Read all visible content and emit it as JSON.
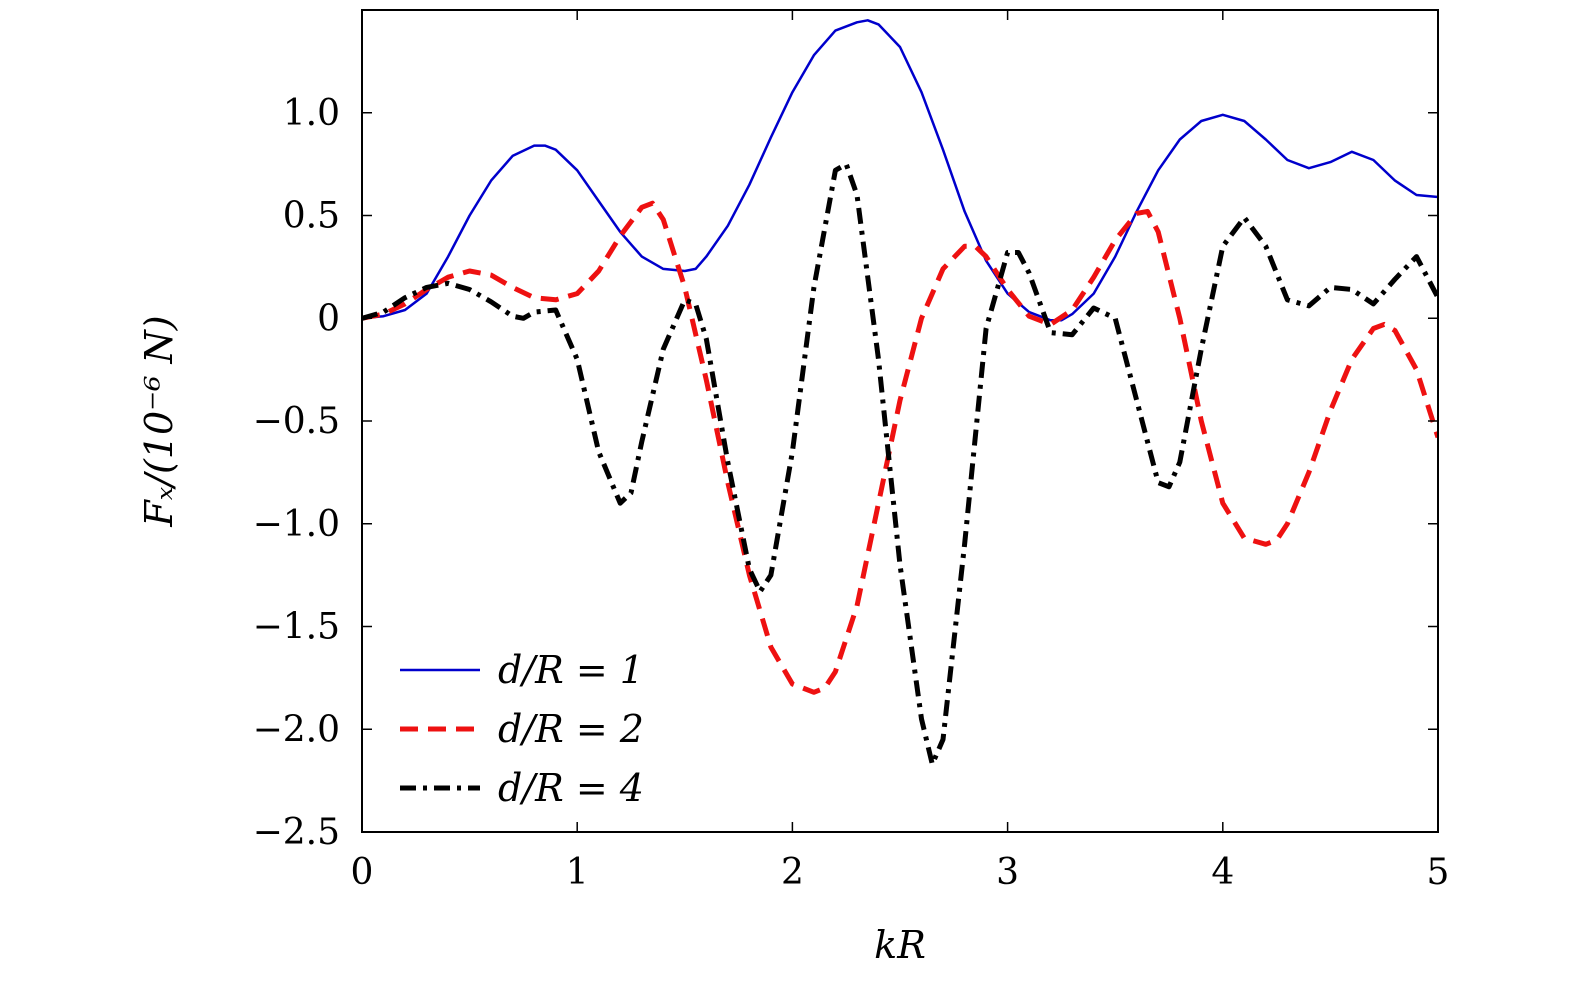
{
  "chart_data": {
    "type": "line",
    "xlabel": "kR",
    "ylabel": "Fₓ/(10⁻⁶ N)",
    "xlim": [
      0,
      5
    ],
    "ylim": [
      -2.5,
      1.5
    ],
    "xticks": [
      0,
      1,
      2,
      3,
      4,
      5
    ],
    "xtick_labels": [
      "0",
      "1",
      "2",
      "3",
      "4",
      "5"
    ],
    "yticks": [
      -2.5,
      -2.0,
      -1.5,
      -1.0,
      -0.5,
      0,
      0.5,
      1.0
    ],
    "ytick_labels": [
      "−2.5",
      "−2.0",
      "−1.5",
      "−1.0",
      "−0.5",
      "0",
      "0.5",
      "1.0"
    ],
    "grid": false,
    "legend_position": "bottom-left",
    "series": [
      {
        "name": "d/R = 1",
        "color": "#0000cc",
        "style": "solid",
        "x": [
          0,
          0.1,
          0.2,
          0.3,
          0.4,
          0.5,
          0.6,
          0.7,
          0.8,
          0.85,
          0.9,
          1.0,
          1.1,
          1.2,
          1.3,
          1.4,
          1.5,
          1.55,
          1.6,
          1.7,
          1.8,
          1.9,
          2.0,
          2.1,
          2.2,
          2.3,
          2.35,
          2.4,
          2.5,
          2.6,
          2.7,
          2.8,
          2.9,
          3.0,
          3.1,
          3.2,
          3.25,
          3.3,
          3.4,
          3.5,
          3.6,
          3.7,
          3.8,
          3.9,
          4.0,
          4.1,
          4.2,
          4.3,
          4.4,
          4.5,
          4.6,
          4.7,
          4.8,
          4.9,
          5.0
        ],
        "y": [
          0,
          0.01,
          0.04,
          0.12,
          0.3,
          0.5,
          0.67,
          0.79,
          0.84,
          0.84,
          0.82,
          0.72,
          0.57,
          0.42,
          0.3,
          0.24,
          0.23,
          0.24,
          0.3,
          0.45,
          0.65,
          0.88,
          1.1,
          1.28,
          1.4,
          1.44,
          1.45,
          1.43,
          1.32,
          1.1,
          0.82,
          0.52,
          0.28,
          0.12,
          0.03,
          -0.01,
          -0.01,
          0.02,
          0.12,
          0.3,
          0.52,
          0.72,
          0.87,
          0.96,
          0.99,
          0.96,
          0.87,
          0.77,
          0.73,
          0.76,
          0.81,
          0.77,
          0.67,
          0.6,
          0.59
        ]
      },
      {
        "name": "d/R = 2",
        "color": "#ee1111",
        "style": "dashed",
        "x": [
          0,
          0.1,
          0.2,
          0.3,
          0.4,
          0.5,
          0.6,
          0.7,
          0.8,
          0.9,
          1.0,
          1.1,
          1.2,
          1.3,
          1.35,
          1.4,
          1.5,
          1.6,
          1.7,
          1.8,
          1.9,
          2.0,
          2.1,
          2.15,
          2.2,
          2.3,
          2.4,
          2.5,
          2.6,
          2.7,
          2.8,
          2.85,
          2.9,
          3.0,
          3.1,
          3.2,
          3.3,
          3.4,
          3.5,
          3.6,
          3.65,
          3.7,
          3.8,
          3.9,
          4.0,
          4.1,
          4.2,
          4.25,
          4.3,
          4.4,
          4.5,
          4.6,
          4.7,
          4.75,
          4.8,
          4.9,
          5.0
        ],
        "y": [
          0,
          0.02,
          0.07,
          0.14,
          0.2,
          0.23,
          0.21,
          0.15,
          0.1,
          0.09,
          0.12,
          0.23,
          0.4,
          0.54,
          0.56,
          0.48,
          0.15,
          -0.3,
          -0.8,
          -1.25,
          -1.6,
          -1.78,
          -1.82,
          -1.8,
          -1.72,
          -1.4,
          -0.9,
          -0.4,
          0.0,
          0.24,
          0.35,
          0.35,
          0.3,
          0.14,
          0.01,
          -0.03,
          0.04,
          0.2,
          0.38,
          0.51,
          0.52,
          0.42,
          0.0,
          -0.5,
          -0.9,
          -1.07,
          -1.1,
          -1.08,
          -1.0,
          -0.75,
          -0.45,
          -0.2,
          -0.05,
          -0.03,
          -0.06,
          -0.25,
          -0.58
        ]
      },
      {
        "name": "d/R = 4",
        "color": "#000000",
        "style": "dashdot",
        "x": [
          0,
          0.1,
          0.2,
          0.3,
          0.4,
          0.5,
          0.6,
          0.7,
          0.75,
          0.8,
          0.9,
          1.0,
          1.1,
          1.2,
          1.25,
          1.3,
          1.4,
          1.5,
          1.55,
          1.6,
          1.7,
          1.8,
          1.85,
          1.9,
          2.0,
          2.1,
          2.2,
          2.25,
          2.3,
          2.4,
          2.5,
          2.6,
          2.65,
          2.7,
          2.8,
          2.9,
          3.0,
          3.05,
          3.1,
          3.2,
          3.3,
          3.4,
          3.5,
          3.6,
          3.7,
          3.75,
          3.8,
          3.9,
          4.0,
          4.1,
          4.2,
          4.3,
          4.4,
          4.5,
          4.6,
          4.7,
          4.8,
          4.9,
          5.0
        ],
        "y": [
          0,
          0.03,
          0.1,
          0.15,
          0.17,
          0.14,
          0.08,
          0.01,
          0.0,
          0.03,
          0.04,
          -0.2,
          -0.65,
          -0.9,
          -0.85,
          -0.6,
          -0.15,
          0.09,
          0.07,
          -0.1,
          -0.7,
          -1.22,
          -1.33,
          -1.25,
          -0.65,
          0.15,
          0.72,
          0.75,
          0.6,
          -0.2,
          -1.2,
          -1.95,
          -2.17,
          -2.05,
          -1.1,
          -0.05,
          0.32,
          0.32,
          0.22,
          -0.07,
          -0.08,
          0.05,
          0.0,
          -0.4,
          -0.8,
          -0.82,
          -0.7,
          -0.15,
          0.35,
          0.49,
          0.35,
          0.09,
          0.06,
          0.15,
          0.14,
          0.07,
          0.19,
          0.3,
          0.1
        ]
      }
    ]
  }
}
